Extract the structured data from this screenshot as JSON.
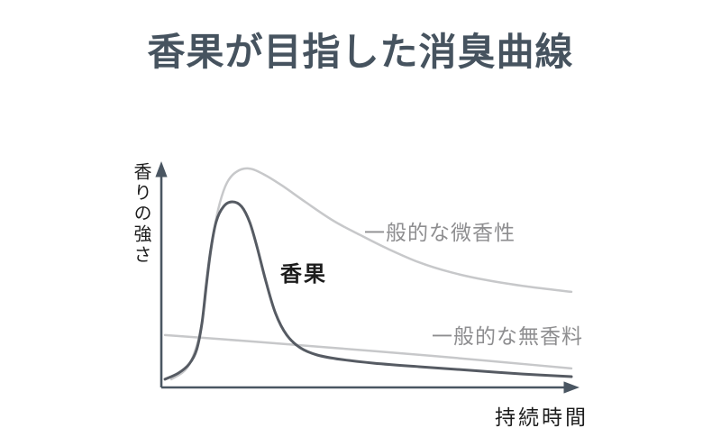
{
  "title": "香果が目指した消臭曲線",
  "chart_data": {
    "type": "line",
    "title": "香果が目指した消臭曲線",
    "xlabel": "持続時間",
    "ylabel": "香りの強さ",
    "axis_color": "#4a5662",
    "grid": false,
    "legend_position": "inline-annotations",
    "x_range": [
      0,
      100
    ],
    "y_range": [
      0,
      100
    ],
    "series": [
      {
        "name": "一般的な微香性",
        "color": "#c7c8ca",
        "stroke_width": 2.5,
        "points": [
          [
            2.4,
            3.7
          ],
          [
            6.1,
            8.6
          ],
          [
            8.7,
            20.0
          ],
          [
            10.2,
            34.7
          ],
          [
            11.3,
            52.2
          ],
          [
            12.6,
            70.2
          ],
          [
            14.1,
            83.7
          ],
          [
            15.8,
            92.7
          ],
          [
            18.0,
            97.6
          ],
          [
            21.0,
            99.2
          ],
          [
            24.5,
            96.7
          ],
          [
            29.1,
            91.4
          ],
          [
            34.9,
            83.7
          ],
          [
            41.4,
            75.5
          ],
          [
            47.9,
            69.0
          ],
          [
            54.4,
            62.9
          ],
          [
            62.0,
            56.7
          ],
          [
            69.6,
            52.2
          ],
          [
            78.3,
            48.6
          ],
          [
            88.1,
            45.7
          ],
          [
            98.7,
            43.3
          ]
        ]
      },
      {
        "name": "一般的な無香料",
        "color": "#c7c8ca",
        "stroke_width": 2.5,
        "points": [
          [
            0.9,
            23.7
          ],
          [
            21.9,
            20.8
          ],
          [
            43.6,
            17.6
          ],
          [
            65.3,
            14.3
          ],
          [
            82.6,
            11.4
          ],
          [
            98.7,
            8.6
          ]
        ]
      },
      {
        "name": "香果",
        "color": "#565b63",
        "stroke_width": 3,
        "points": [
          [
            0.9,
            3.7
          ],
          [
            4.1,
            6.5
          ],
          [
            6.7,
            10.6
          ],
          [
            8.5,
            17.1
          ],
          [
            9.8,
            29.4
          ],
          [
            10.8,
            46.1
          ],
          [
            11.9,
            62.4
          ],
          [
            13.2,
            75.1
          ],
          [
            15.0,
            82.0
          ],
          [
            17.1,
            84.1
          ],
          [
            19.3,
            82.0
          ],
          [
            21.3,
            74.7
          ],
          [
            23.2,
            62.4
          ],
          [
            25.2,
            47.8
          ],
          [
            27.5,
            33.5
          ],
          [
            30.2,
            23.7
          ],
          [
            33.4,
            18.0
          ],
          [
            37.5,
            14.7
          ],
          [
            43.2,
            12.7
          ],
          [
            51.2,
            11.0
          ],
          [
            62.0,
            9.4
          ],
          [
            74.0,
            7.8
          ],
          [
            87.0,
            6.1
          ],
          [
            98.7,
            4.9
          ]
        ]
      }
    ]
  }
}
